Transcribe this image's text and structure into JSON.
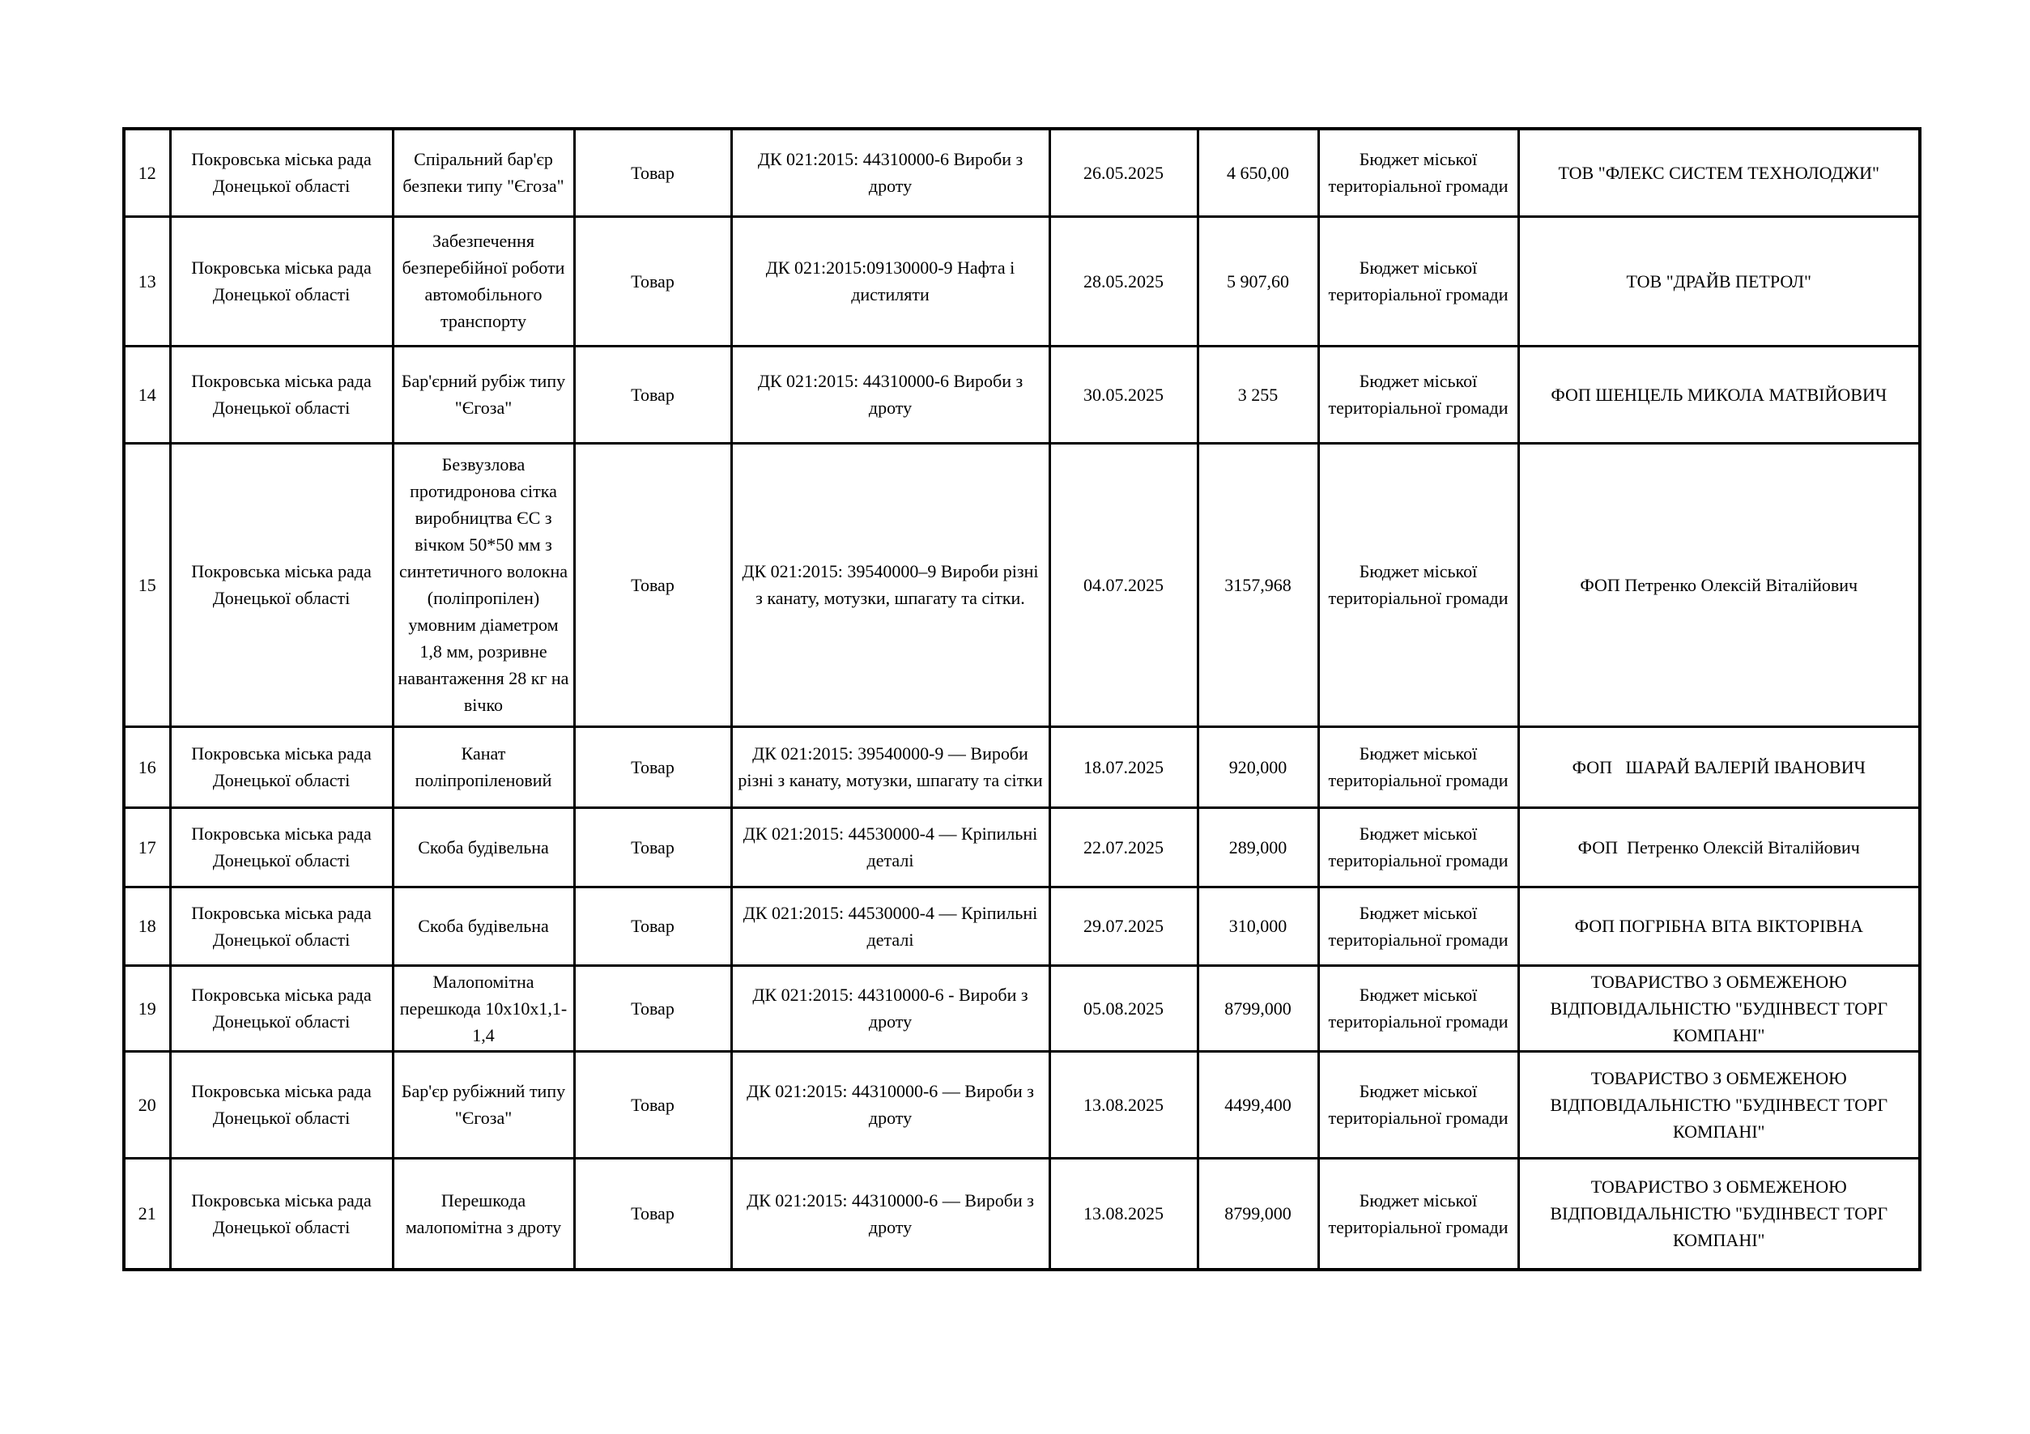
{
  "page": {
    "background_color": "#ffffff",
    "text_color": "#000000",
    "border_color": "#000000"
  },
  "table": {
    "rows": [
      {
        "num": "12",
        "customer": "Покровська міська рада Донецької області",
        "item": "Спіральний бар'єр безпеки типу \"Єгоза\"",
        "type": "Товар",
        "code": "ДК 021:2015: 44310000-6 Вироби з дроту",
        "date": "26.05.2025",
        "amount": "4 650,00",
        "budget": "Бюджет міської територіальної громади",
        "supplier": "ТОВ \"ФЛЕКС СИСТЕМ ТЕХНОЛОДЖИ\""
      },
      {
        "num": "13",
        "customer": "Покровська міська рада Донецької області",
        "item": "Забезпечення безперебійної роботи автомобільного транспорту",
        "type": "Товар",
        "code": "ДК 021:2015:09130000-9 Нафта і дистиляти",
        "date": "28.05.2025",
        "amount": "5 907,60",
        "budget": "Бюджет міської територіальної громади",
        "supplier": "ТОВ \"ДРАЙВ ПЕТРОЛ\""
      },
      {
        "num": "14",
        "customer": "Покровська міська рада Донецької області",
        "item": "Бар'єрний рубіж типу \"Єгоза\"",
        "type": "Товар",
        "code": "ДК 021:2015: 44310000-6 Вироби з дроту",
        "date": "30.05.2025",
        "amount": "3 255",
        "budget": "Бюджет міської територіальної громади",
        "supplier": "ФОП ШЕНЦЕЛЬ МИКОЛА МАТВІЙОВИЧ"
      },
      {
        "num": "15",
        "customer": "Покровська міська рада Донецької області",
        "item": "Безвузлова протидронова сітка виробництва ЄС з вічком 50*50 мм з синтетичного волокна (поліпропілен) умовним діаметром 1,8 мм, розривне навантаження 28 кг на вічко",
        "type": "Товар",
        "code": "ДК 021:2015: 39540000–9 Вироби різні з канату, мотузки, шпагату та сітки.",
        "date": "04.07.2025",
        "amount": "3157,968",
        "budget": "Бюджет міської територіальної громади",
        "supplier": "ФОП Петренко Олексій Віталійович"
      },
      {
        "num": "16",
        "customer": "Покровська міська рада Донецької області",
        "item": "Канат поліпропіленовий",
        "type": "Товар",
        "code": "ДК 021:2015: 39540000-9 — Вироби різні з канату, мотузки, шпагату та сітки",
        "date": "18.07.2025",
        "amount": "920,000",
        "budget": "Бюджет міської територіальної громади",
        "supplier": "ФОП   ШАРАЙ ВАЛЕРІЙ ІВАНОВИЧ"
      },
      {
        "num": "17",
        "customer": "Покровська міська рада Донецької області",
        "item": "Скоба будівельна",
        "type": "Товар",
        "code": "ДК 021:2015: 44530000-4 — Кріпильні деталі",
        "date": "22.07.2025",
        "amount": "289,000",
        "budget": "Бюджет міської територіальної громади",
        "supplier": "ФОП  Петренко Олексій Віталійович"
      },
      {
        "num": "18",
        "customer": "Покровська міська рада Донецької області",
        "item": "Скоба будівельна",
        "type": "Товар",
        "code": "ДК 021:2015: 44530000-4 — Кріпильні деталі",
        "date": "29.07.2025",
        "amount": "310,000",
        "budget": "Бюджет міської територіальної громади",
        "supplier": "ФОП ПОГРІБНА ВІТА ВІКТОРІВНА"
      },
      {
        "num": "19",
        "customer": "Покровська міська рада Донецької області",
        "item": "Малопомітна перешкода 10х10х1,1-1,4",
        "type": "Товар",
        "code": "ДК 021:2015: 44310000-6 - Вироби з дроту",
        "date": "05.08.2025",
        "amount": "8799,000",
        "budget": "Бюджет міської територіальної громади",
        "supplier": "ТОВАРИСТВО З ОБМЕЖЕНОЮ ВІДПОВІДАЛЬНІСТЮ \"БУДІНВЕСТ ТОРГ КОМПАНІ\""
      },
      {
        "num": "20",
        "customer": "Покровська міська рада Донецької області",
        "item": "Бар'єр рубіжний типу \"Єгоза\"",
        "type": "Товар",
        "code": "ДК 021:2015: 44310000-6 — Вироби з дроту",
        "date": "13.08.2025",
        "amount": "4499,400",
        "budget": "Бюджет міської територіальної громади",
        "supplier": "ТОВАРИСТВО З ОБМЕЖЕНОЮ ВІДПОВІДАЛЬНІСТЮ \"БУДІНВЕСТ ТОРГ КОМПАНІ\""
      },
      {
        "num": "21",
        "customer": "Покровська міська рада Донецької області",
        "item": "Перешкода малопомітна з дроту",
        "type": "Товар",
        "code": "ДК 021:2015: 44310000-6 — Вироби з дроту",
        "date": "13.08.2025",
        "amount": "8799,000",
        "budget": "Бюджет міської територіальної громади",
        "supplier": "ТОВАРИСТВО З ОБМЕЖЕНОЮ ВІДПОВІДАЛЬНІСТЮ \"БУДІНВЕСТ ТОРГ КОМПАНІ\""
      }
    ]
  }
}
